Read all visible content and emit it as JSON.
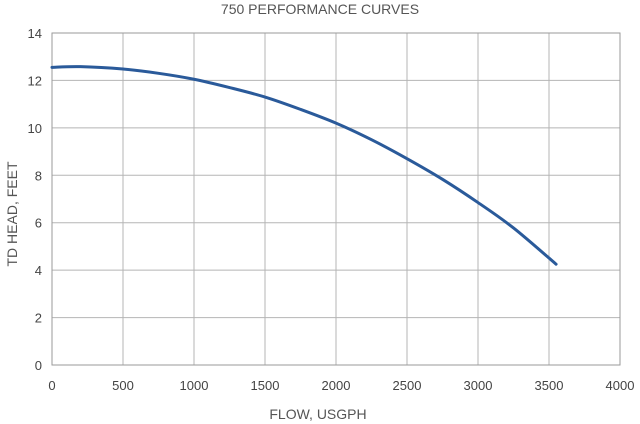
{
  "chart_data": {
    "type": "line",
    "title": "750 PERFORMANCE CURVES",
    "xlabel": "FLOW, USGPH",
    "ylabel": "TD HEAD, FEET",
    "xlim": [
      0,
      4000
    ],
    "ylim": [
      0,
      14
    ],
    "x_ticks": [
      0,
      500,
      1000,
      1500,
      2000,
      2500,
      3000,
      3500,
      4000
    ],
    "y_ticks": [
      0,
      2,
      4,
      6,
      8,
      10,
      12,
      14
    ],
    "x_tick_labels": [
      "0",
      "500",
      "1000",
      "1500",
      "2000",
      "2500",
      "3000",
      "3500",
      "4000"
    ],
    "y_tick_labels": [
      "0",
      "2",
      "4",
      "6",
      "8",
      "10",
      "12",
      "14"
    ],
    "grid": true,
    "series": [
      {
        "color": "#2a5a9a",
        "x": [
          0,
          200,
          500,
          750,
          1000,
          1250,
          1500,
          1750,
          2000,
          2250,
          2500,
          2750,
          3000,
          3250,
          3550
        ],
        "y": [
          12.55,
          12.58,
          12.48,
          12.3,
          12.05,
          11.7,
          11.3,
          10.78,
          10.2,
          9.5,
          8.7,
          7.83,
          6.85,
          5.78,
          4.25
        ]
      }
    ]
  }
}
